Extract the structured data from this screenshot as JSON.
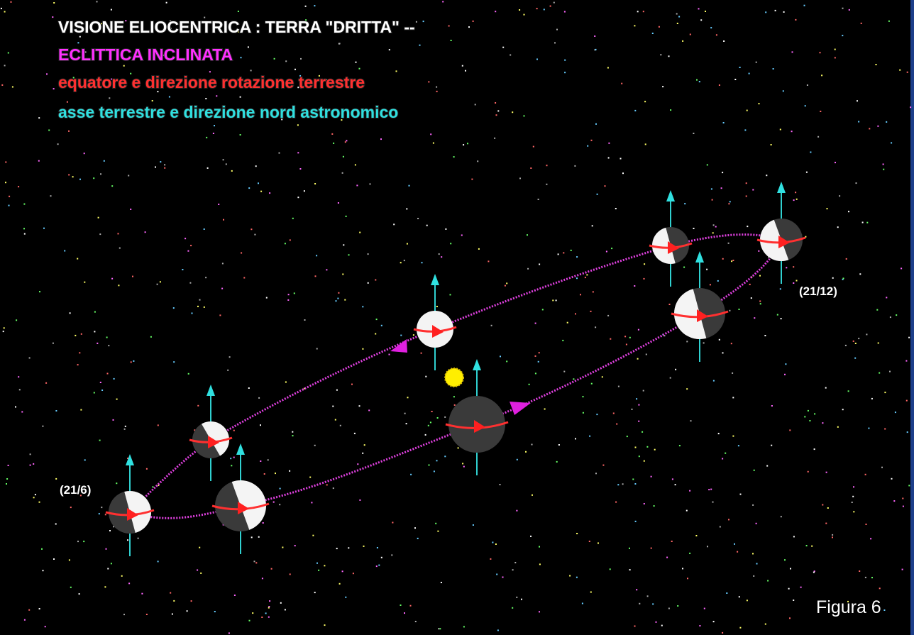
{
  "title_lines": [
    "VISIONE ELIOCENTRICA : TERRA \"DRITTA\" --",
    "ECLITTICA INCLINATA",
    "equatore  e direzione rotazione terrestre",
    "asse terrestre e direzione nord astronomico"
  ],
  "labels": {
    "summer": "(21/6)",
    "winter": "(21/12)"
  },
  "caption": "Figura 6"
}
